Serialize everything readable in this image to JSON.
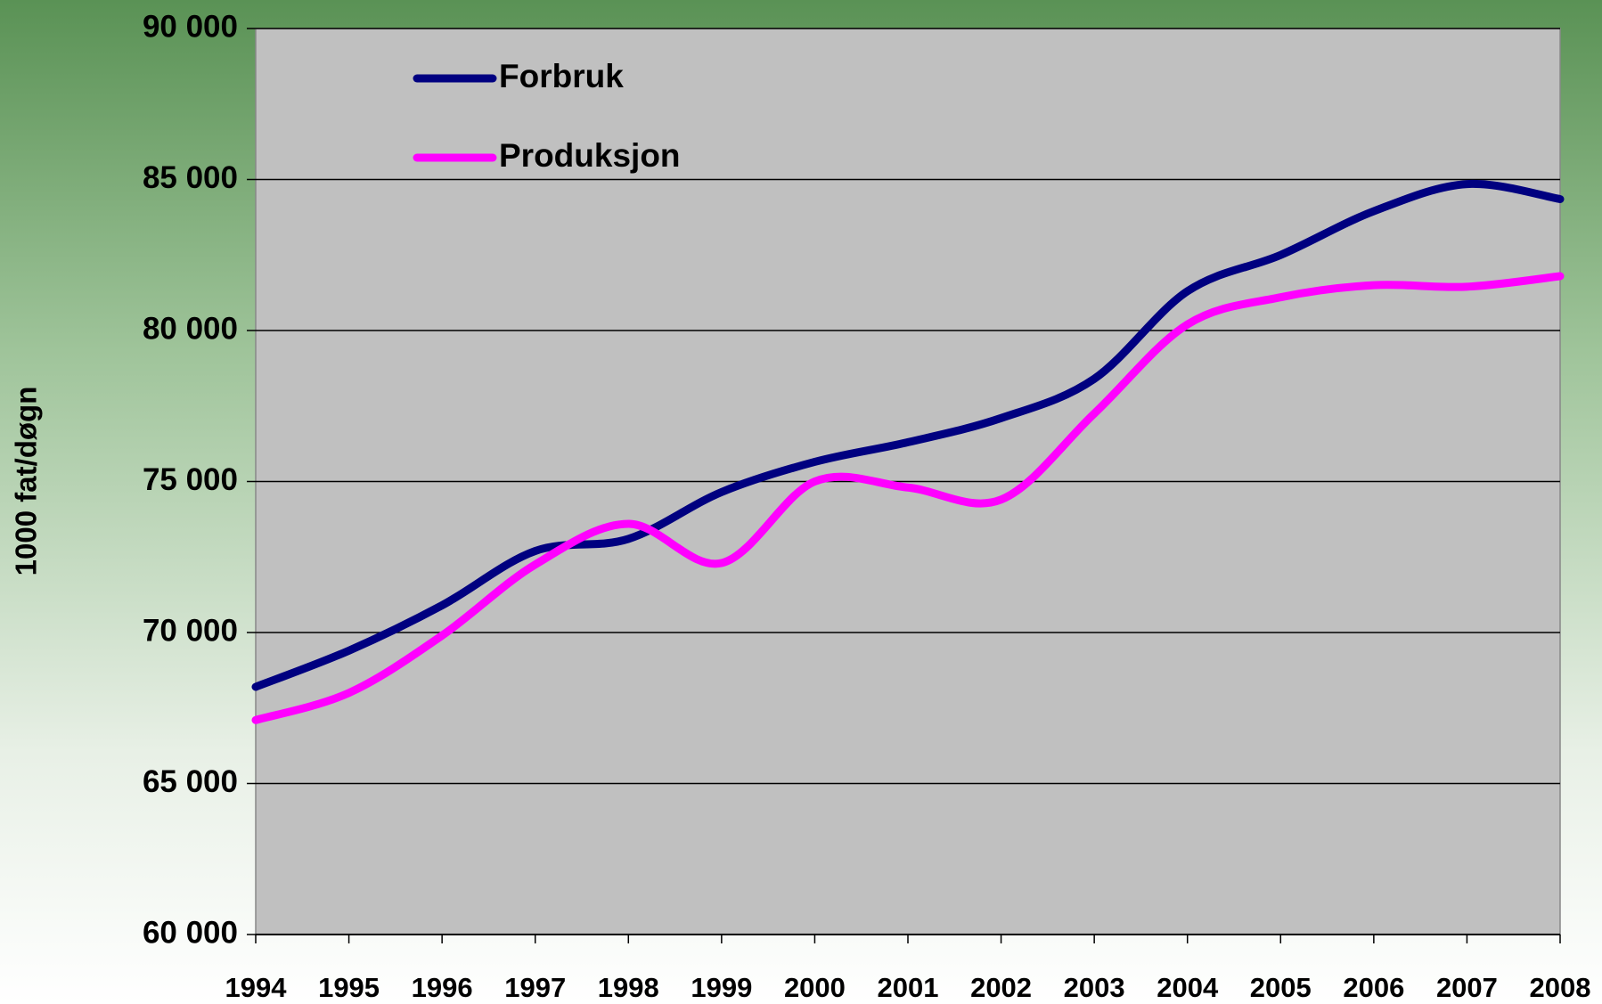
{
  "chart_data": {
    "type": "line",
    "y_label": "1000 fat/døgn",
    "x": [
      1994,
      1995,
      1996,
      1997,
      1998,
      1999,
      2000,
      2001,
      2002,
      2003,
      2004,
      2005,
      2006,
      2007,
      2008
    ],
    "xlim": [
      1994,
      2008
    ],
    "xticks": [
      1994,
      1995,
      1996,
      1997,
      1998,
      1999,
      2000,
      2001,
      2002,
      2003,
      2004,
      2005,
      2006,
      2007,
      2008
    ],
    "ylim": [
      60000,
      90000
    ],
    "yticks": [
      {
        "value": 60000,
        "label": "60 000"
      },
      {
        "value": 65000,
        "label": "65 000"
      },
      {
        "value": 70000,
        "label": "70 000"
      },
      {
        "value": 75000,
        "label": "75 000"
      },
      {
        "value": 80000,
        "label": "80 000"
      },
      {
        "value": 85000,
        "label": "85 000"
      },
      {
        "value": 90000,
        "label": "90 000"
      }
    ],
    "grid": true,
    "legend": "top-left",
    "series": [
      {
        "name": "Forbruk",
        "color": "#000080",
        "values": [
          68200,
          69400,
          70900,
          72700,
          73100,
          74650,
          75650,
          76300,
          77100,
          78400,
          81300,
          82500,
          83950,
          84850,
          84350
        ]
      },
      {
        "name": "Produksjon",
        "color": "#ff00ff",
        "values": [
          67100,
          68000,
          69900,
          72250,
          73600,
          72300,
          75000,
          74800,
          74400,
          77250,
          80200,
          81100,
          81500,
          81450,
          81800
        ]
      }
    ]
  }
}
